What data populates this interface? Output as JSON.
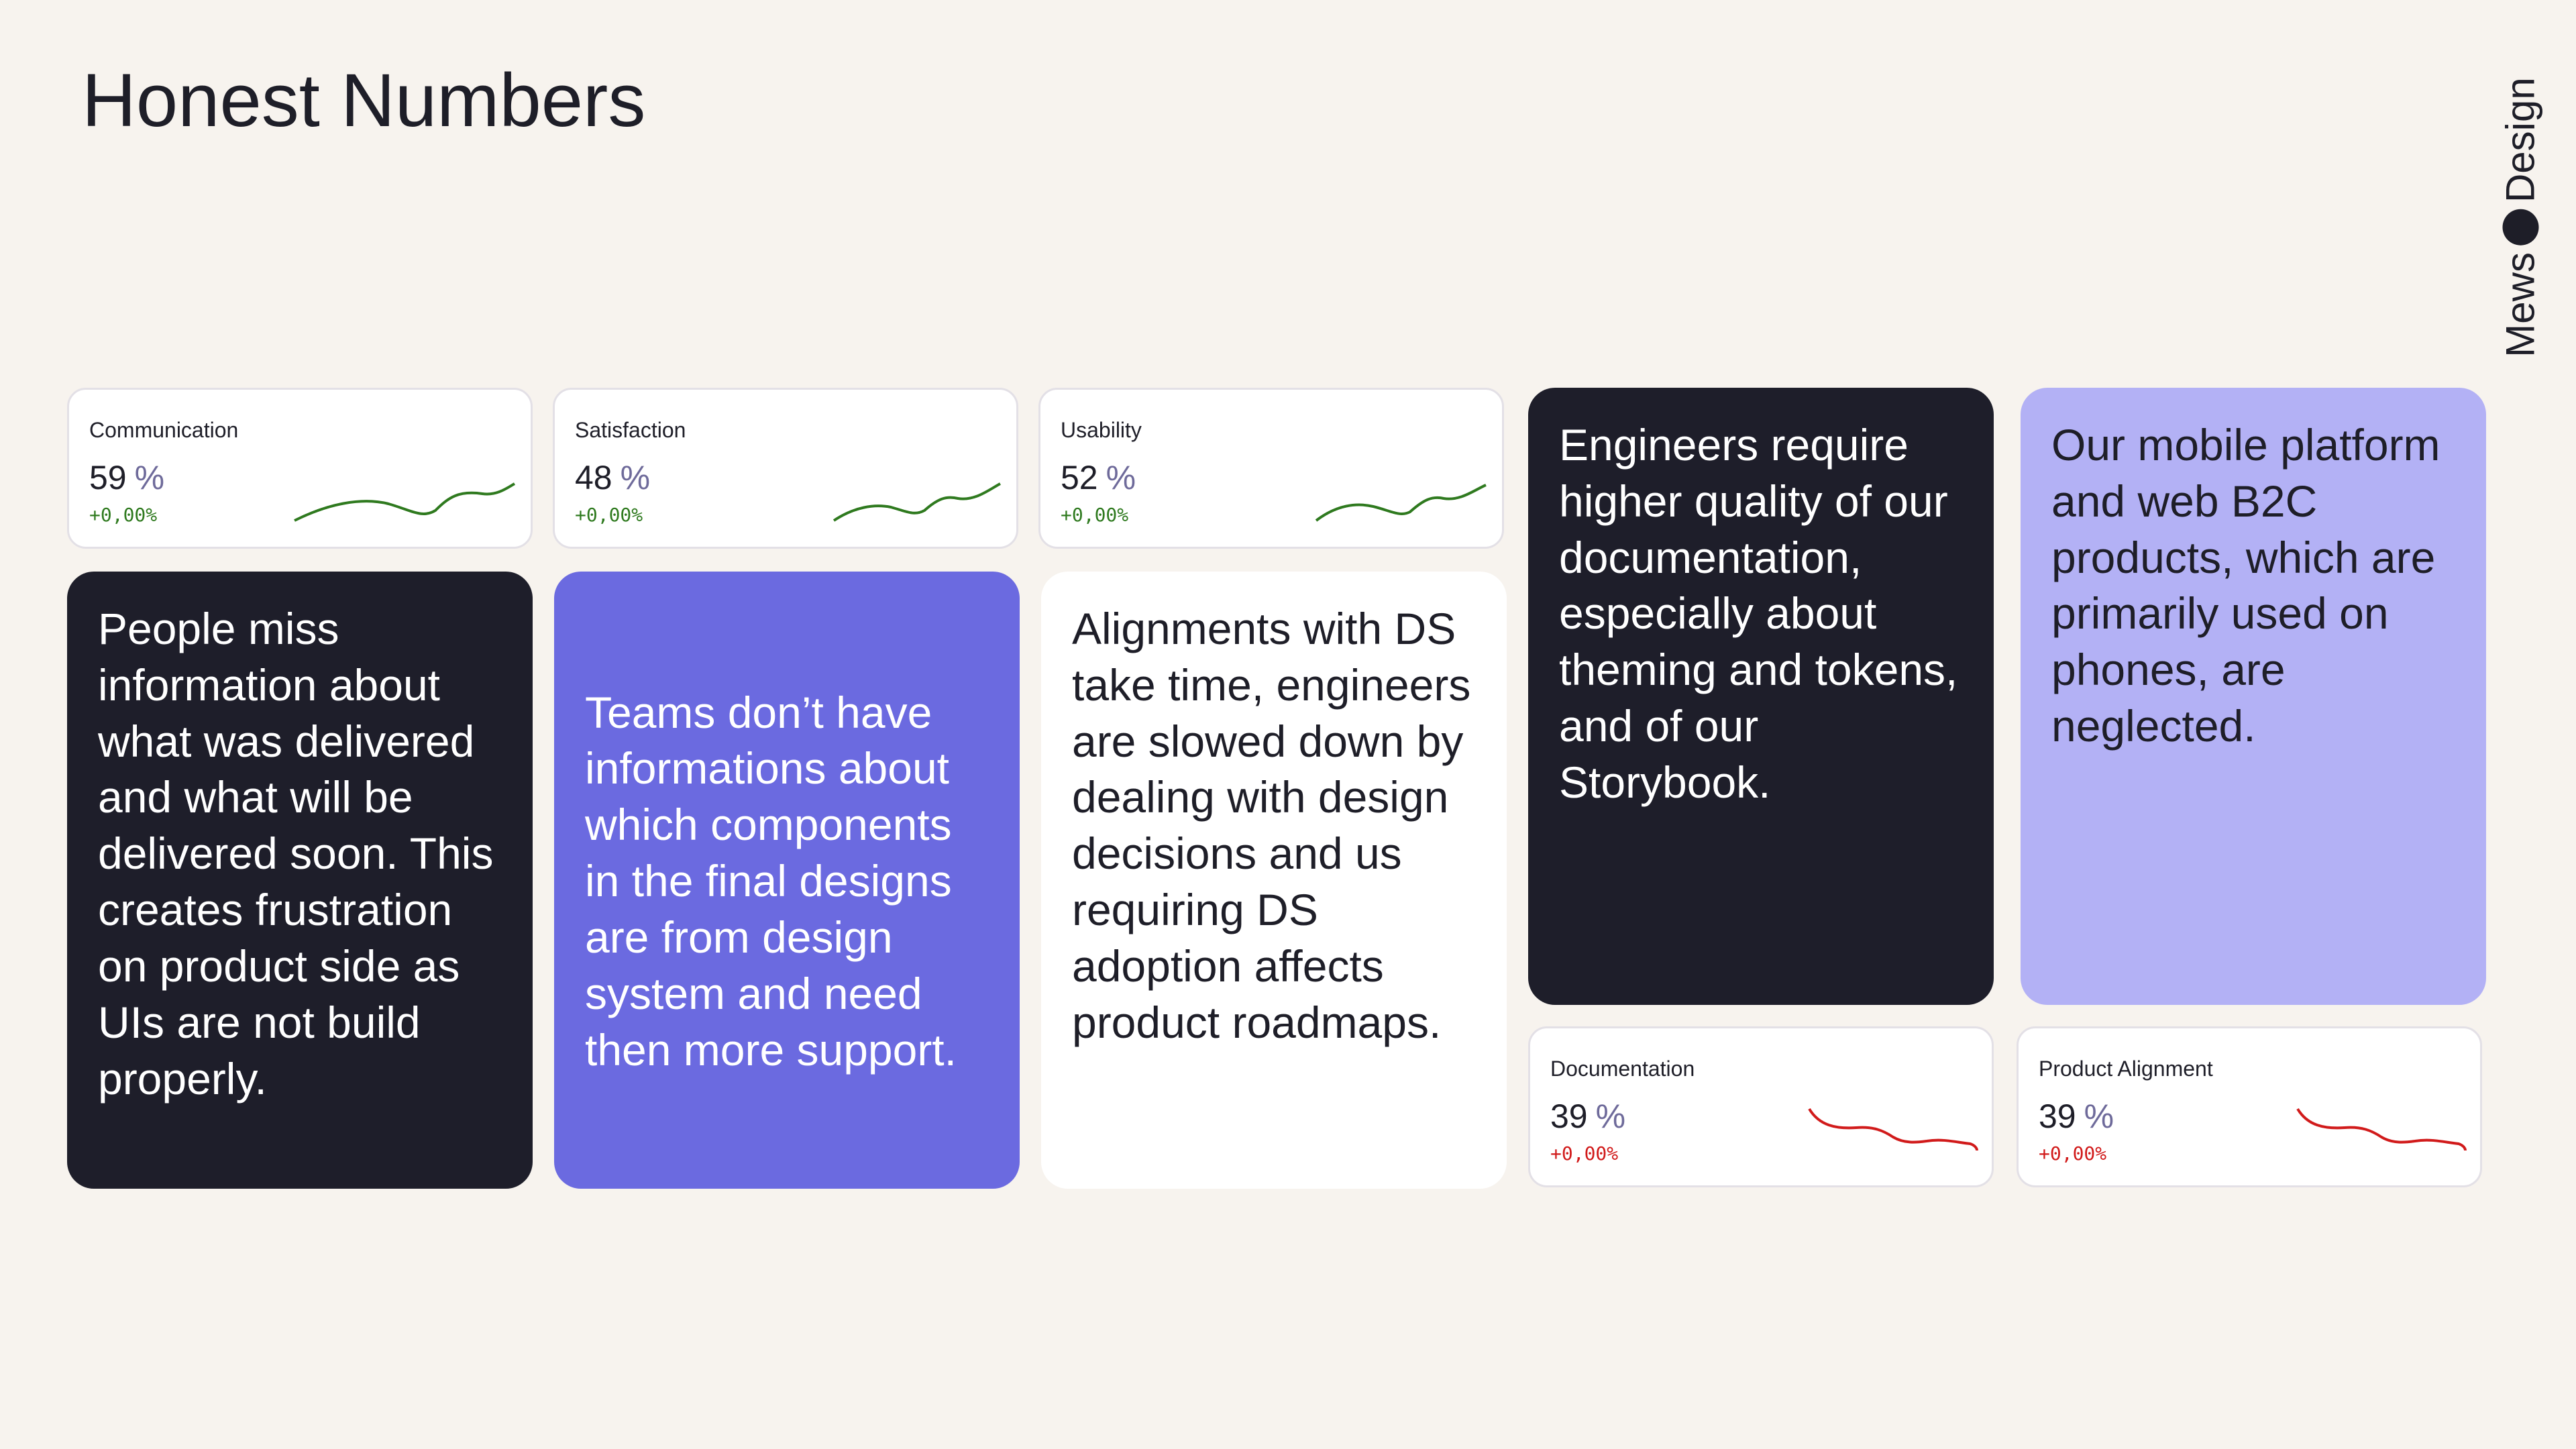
{
  "page": {
    "title": "Honest Numbers"
  },
  "brand": {
    "left": "Mews",
    "right": "Design"
  },
  "metrics": [
    {
      "label": "Communication",
      "value": "59",
      "unit": "%",
      "change": "+0,00%",
      "trend": "up",
      "color": "#2f7a1f"
    },
    {
      "label": "Satisfaction",
      "value": "48",
      "unit": "%",
      "change": "+0,00%",
      "trend": "up",
      "color": "#2f7a1f"
    },
    {
      "label": "Usability",
      "value": "52",
      "unit": "%",
      "change": "+0,00%",
      "trend": "up",
      "color": "#2f7a1f"
    },
    {
      "label": "Documentation",
      "value": "39",
      "unit": "%",
      "change": "+0,00%",
      "trend": "down",
      "color": "#d11a1a"
    },
    {
      "label": "Product Alignment",
      "value": "39",
      "unit": "%",
      "change": "+0,00%",
      "trend": "down",
      "color": "#d11a1a"
    }
  ],
  "statements": [
    {
      "text": "People miss information about what was delivered and what will be delivered soon. This creates frustration on product side as UIs are not build properly.",
      "theme": "dark"
    },
    {
      "text": "Teams don’t have informations about which components in the final designs are from design system and need then more support.",
      "theme": "purple"
    },
    {
      "text": "Alignments with DS take time, engineers are slowed down by dealing with design decisions and us requiring DS adoption affects product roadmaps.",
      "theme": "white"
    },
    {
      "text": "Engineers require higher quality of our documentation, especially about theming and tokens, and of our Storybook.",
      "theme": "dark"
    },
    {
      "text": "Our mobile platform and web B2C products, which are primarily used on phones, are neglected.",
      "theme": "lavender"
    }
  ],
  "colors": {
    "background": "#f7f3ee",
    "dark": "#1e1e2a",
    "purple": "#6b6ae0",
    "lavender": "#b3b1f5",
    "positive": "#2f7a1f",
    "negative": "#d11a1a"
  }
}
